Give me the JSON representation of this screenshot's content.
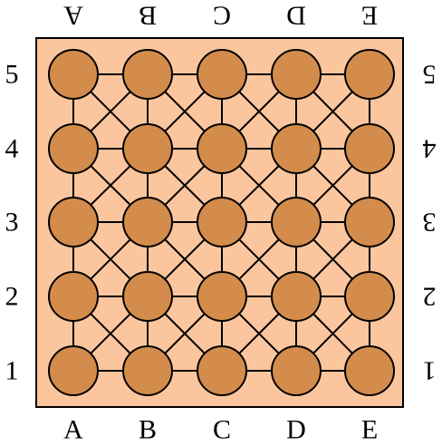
{
  "board": {
    "files": [
      "A",
      "B",
      "C",
      "D",
      "E"
    ],
    "ranks": [
      "1",
      "2",
      "3",
      "4",
      "5"
    ],
    "colors": {
      "board_fill": "#fbc69e",
      "board_border": "#000000",
      "line": "#000000",
      "stone_fill": "#d38c4b",
      "stone_stroke": "#000000",
      "label": "#000000"
    },
    "stones": [
      {
        "file": "A",
        "rank": "5"
      },
      {
        "file": "B",
        "rank": "5"
      },
      {
        "file": "C",
        "rank": "5"
      },
      {
        "file": "D",
        "rank": "5"
      },
      {
        "file": "E",
        "rank": "5"
      },
      {
        "file": "A",
        "rank": "4"
      },
      {
        "file": "B",
        "rank": "4"
      },
      {
        "file": "C",
        "rank": "4"
      },
      {
        "file": "D",
        "rank": "4"
      },
      {
        "file": "E",
        "rank": "4"
      },
      {
        "file": "A",
        "rank": "3"
      },
      {
        "file": "B",
        "rank": "3"
      },
      {
        "file": "C",
        "rank": "3"
      },
      {
        "file": "D",
        "rank": "3"
      },
      {
        "file": "E",
        "rank": "3"
      },
      {
        "file": "A",
        "rank": "2"
      },
      {
        "file": "B",
        "rank": "2"
      },
      {
        "file": "C",
        "rank": "2"
      },
      {
        "file": "D",
        "rank": "2"
      },
      {
        "file": "E",
        "rank": "2"
      },
      {
        "file": "A",
        "rank": "1"
      },
      {
        "file": "B",
        "rank": "1"
      },
      {
        "file": "C",
        "rank": "1"
      },
      {
        "file": "D",
        "rank": "1"
      },
      {
        "file": "E",
        "rank": "1"
      }
    ]
  }
}
